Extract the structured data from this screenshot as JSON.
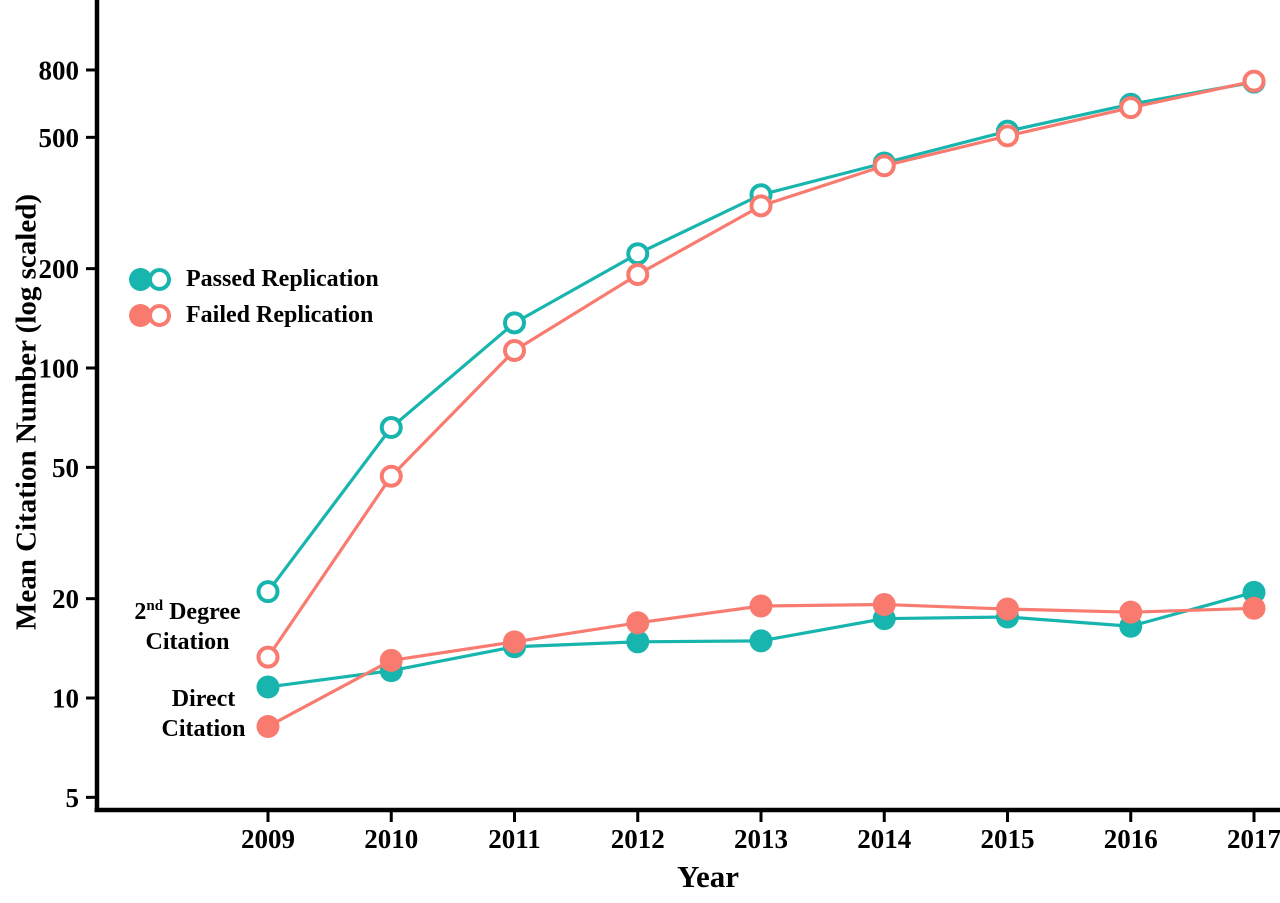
{
  "chart_data": {
    "type": "line",
    "title": "",
    "xlabel": "Year",
    "ylabel": "Mean Citation Number (log scaled)",
    "x": [
      2009,
      2010,
      2011,
      2012,
      2013,
      2014,
      2015,
      2016,
      2017
    ],
    "y_scale": "log",
    "y_ticks": [
      800,
      500,
      200,
      100,
      50,
      20,
      10,
      5
    ],
    "ylim_approx": [
      4.5,
      1300
    ],
    "grid": "off",
    "legend_position": "inside-upper-left",
    "axis_color": "#000000",
    "series": [
      {
        "id": "passed-2nd-degree",
        "name": "Passed Replication - 2nd Degree Citation",
        "group": "2nd Degree Citation",
        "replication": "Passed",
        "color": "#17B5AD",
        "marker": "open",
        "values": [
          21,
          66,
          137,
          222,
          335,
          418,
          522,
          630,
          735
        ]
      },
      {
        "id": "failed-2nd-degree",
        "name": "Failed Replication - 2nd Degree Citation",
        "group": "2nd Degree Citation",
        "replication": "Failed",
        "color": "#F97B70",
        "marker": "open",
        "values": [
          13.3,
          47,
          113,
          192,
          310,
          410,
          505,
          615,
          740
        ]
      },
      {
        "id": "passed-direct",
        "name": "Passed Replication - Direct Citation",
        "group": "Direct Citation",
        "replication": "Passed",
        "color": "#17B5AD",
        "marker": "filled",
        "values": [
          10.8,
          12.1,
          14.3,
          14.8,
          14.9,
          17.4,
          17.6,
          16.5,
          20.9
        ]
      },
      {
        "id": "failed-direct",
        "name": "Failed Replication - Direct Citation",
        "group": "Direct Citation",
        "replication": "Failed",
        "color": "#F97B70",
        "marker": "filled",
        "values": [
          8.2,
          13,
          14.8,
          16.9,
          19,
          19.2,
          18.6,
          18.2,
          18.7
        ]
      }
    ]
  },
  "legend": {
    "items": [
      {
        "label": "Passed Replication",
        "color": "#17B5AD"
      },
      {
        "label": "Failed Replication",
        "color": "#F97B70"
      }
    ]
  },
  "annotations": {
    "second_degree": {
      "num": "2",
      "sup": "nd",
      "rest": " Degree",
      "line2": "Citation"
    },
    "direct": {
      "line1": "Direct",
      "line2": "Citation"
    }
  }
}
